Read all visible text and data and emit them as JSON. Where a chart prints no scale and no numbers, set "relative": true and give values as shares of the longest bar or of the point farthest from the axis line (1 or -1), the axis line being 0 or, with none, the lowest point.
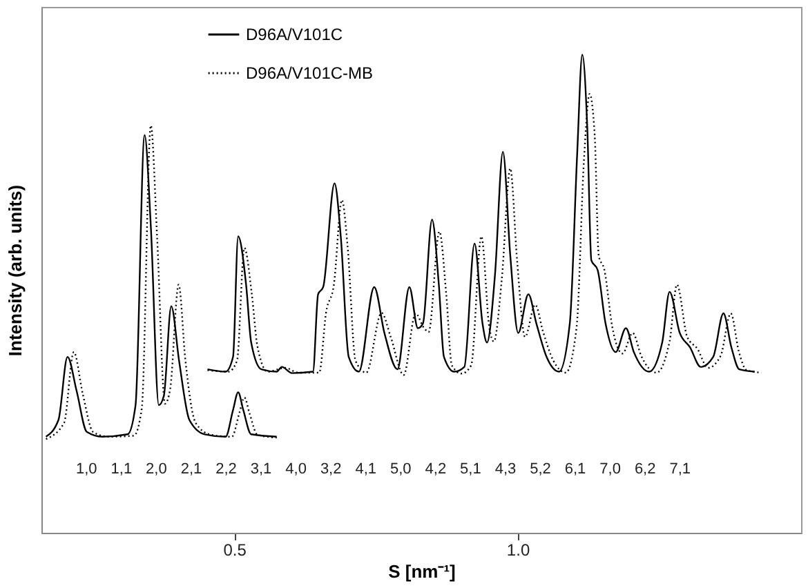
{
  "chart_data": {
    "type": "line",
    "xlabel": "S [nm⁻¹]",
    "ylabel": "Intensity   (arb. units)",
    "relative": true,
    "xlim": [
      0.16,
      1.5
    ],
    "xticks": [
      0.5,
      {
        "value": 1.0,
        "label": "1.0"
      }
    ],
    "grid": false,
    "legend": "top",
    "marker": "none",
    "series": [
      {
        "name": "D96A/V101C",
        "color": "#000000",
        "line_style": "solid",
        "x": [
          0.168,
          0.19,
          0.206,
          0.222,
          0.24,
          0.267,
          0.312,
          0.326,
          0.342,
          0.353,
          0.367,
          0.376,
          0.389,
          0.403,
          0.421,
          0.448,
          0.485,
          0.498,
          0.507,
          0.516,
          0.53,
          0.575
        ],
        "values": [
          0.201,
          0.236,
          0.368,
          0.297,
          0.211,
          0.201,
          0.206,
          0.267,
          0.832,
          0.64,
          0.267,
          0.287,
          0.474,
          0.358,
          0.236,
          0.206,
          0.201,
          0.257,
          0.294,
          0.257,
          0.206,
          0.201
        ]
      },
      {
        "color": "#000000",
        "line_style": "solid",
        "x": [
          0.453,
          0.485,
          0.498,
          0.507,
          0.521,
          0.53,
          0.548,
          0.575,
          0.584,
          0.602,
          0.639,
          0.648,
          0.657,
          0.677,
          0.688,
          0.702,
          0.72,
          0.747,
          0.765,
          0.788,
          0.809,
          0.824,
          0.833,
          0.849,
          0.861,
          0.87,
          0.888,
          0.906,
          0.924,
          0.938,
          0.946,
          0.96,
          0.974,
          0.987,
          1.001,
          1.019,
          1.033,
          1.051,
          1.073,
          1.092,
          1.105,
          1.114,
          1.123,
          1.13,
          1.141,
          1.155,
          1.173,
          1.191,
          1.205,
          1.232,
          1.255,
          1.268,
          1.286,
          1.304,
          1.323,
          1.345,
          1.363,
          1.377,
          1.391,
          1.418
        ],
        "values": [
          0.342,
          0.337,
          0.368,
          0.62,
          0.519,
          0.398,
          0.342,
          0.337,
          0.347,
          0.334,
          0.337,
          0.499,
          0.514,
          0.731,
          0.62,
          0.368,
          0.337,
          0.514,
          0.418,
          0.342,
          0.514,
          0.428,
          0.438,
          0.655,
          0.519,
          0.368,
          0.337,
          0.347,
          0.605,
          0.438,
          0.398,
          0.539,
          0.797,
          0.58,
          0.418,
          0.499,
          0.438,
          0.368,
          0.337,
          0.438,
          0.792,
          1.0,
          0.842,
          0.57,
          0.55,
          0.438,
          0.378,
          0.428,
          0.378,
          0.337,
          0.398,
          0.504,
          0.418,
          0.388,
          0.347,
          0.368,
          0.459,
          0.388,
          0.342,
          0.337
        ]
      },
      {
        "name": "D96A/V101C-MB",
        "color": "#000000",
        "line_style": "dotted",
        "x": [
          0.168,
          0.2,
          0.217,
          0.233,
          0.251,
          0.278,
          0.323,
          0.337,
          0.353,
          0.364,
          0.378,
          0.387,
          0.402,
          0.414,
          0.432,
          0.459,
          0.496,
          0.509,
          0.518,
          0.527,
          0.541,
          0.575
        ],
        "values": [
          0.196,
          0.23,
          0.378,
          0.29,
          0.211,
          0.201,
          0.203,
          0.26,
          0.852,
          0.62,
          0.27,
          0.3,
          0.519,
          0.36,
          0.23,
          0.205,
          0.201,
          0.25,
          0.283,
          0.25,
          0.205,
          0.199
        ]
      },
      {
        "color": "#000000",
        "line_style": "dotted",
        "x": [
          0.453,
          0.49,
          0.505,
          0.518,
          0.531,
          0.541,
          0.559,
          0.59,
          0.613,
          0.65,
          0.662,
          0.676,
          0.69,
          0.7,
          0.714,
          0.733,
          0.76,
          0.776,
          0.799,
          0.82,
          0.834,
          0.843,
          0.862,
          0.874,
          0.884,
          0.901,
          0.918,
          0.936,
          0.95,
          0.958,
          0.972,
          0.987,
          0.999,
          1.013,
          1.031,
          1.045,
          1.063,
          1.085,
          1.104,
          1.117,
          1.127,
          1.136,
          1.143,
          1.153,
          1.167,
          1.185,
          1.203,
          1.218,
          1.245,
          1.268,
          1.281,
          1.299,
          1.317,
          1.336,
          1.358,
          1.376,
          1.39,
          1.404,
          1.43
        ],
        "values": [
          0.34,
          0.337,
          0.36,
          0.596,
          0.5,
          0.39,
          0.337,
          0.345,
          0.335,
          0.335,
          0.46,
          0.52,
          0.696,
          0.6,
          0.36,
          0.335,
          0.46,
          0.41,
          0.33,
          0.459,
          0.43,
          0.42,
          0.63,
          0.5,
          0.35,
          0.333,
          0.35,
          0.62,
          0.43,
          0.4,
          0.53,
          0.762,
          0.57,
          0.41,
          0.477,
          0.42,
          0.36,
          0.335,
          0.43,
          0.78,
          0.918,
          0.83,
          0.58,
          0.55,
          0.43,
          0.375,
          0.418,
          0.37,
          0.335,
          0.4,
          0.519,
          0.41,
          0.385,
          0.345,
          0.37,
          0.459,
          0.38,
          0.34,
          0.335
        ]
      }
    ],
    "annotations": [
      "1,0",
      "1,1",
      "2,0",
      "2,1",
      "2,2",
      "3,1",
      "4,0",
      "3,2",
      "4,1",
      "5,0",
      "4,2",
      "5,1",
      "4,3",
      "5,2",
      "6,1",
      "7,0",
      "6,2",
      "7,1"
    ]
  }
}
